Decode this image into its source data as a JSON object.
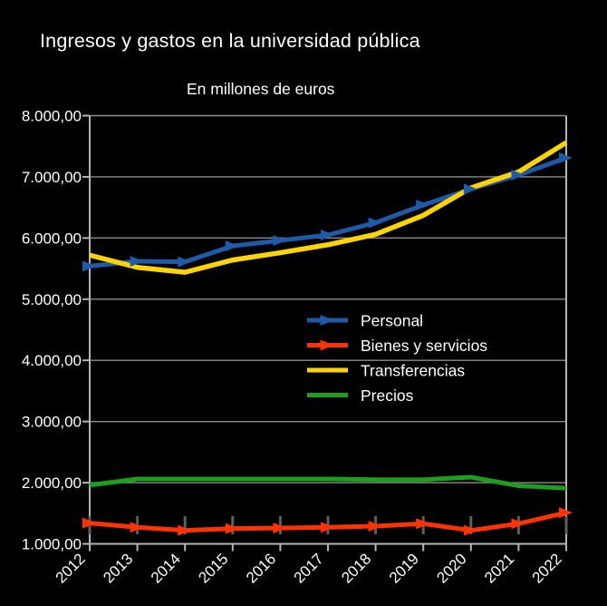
{
  "chart_data": {
    "type": "line",
    "title": "Ingresos y gastos en la universidad pública",
    "subtitle": "En millones de euros",
    "categories": [
      "2012",
      "2013",
      "2014",
      "2015",
      "2016",
      "2017",
      "2018",
      "2019",
      "2020",
      "2021",
      "2022"
    ],
    "series": [
      {
        "name": "Personal",
        "color": "#1e5aa8",
        "marker": "arrow",
        "values": [
          5540,
          5620,
          5610,
          5870,
          5960,
          6050,
          6250,
          6540,
          6800,
          7030,
          7310
        ]
      },
      {
        "name": "Bienes y servicios",
        "color": "#ff3300",
        "marker": "arrow",
        "values": [
          1340,
          1270,
          1220,
          1250,
          1260,
          1270,
          1290,
          1330,
          1220,
          1330,
          1510
        ]
      },
      {
        "name": "Transferencias",
        "color": "#ffd400",
        "marker": "none",
        "values": [
          5720,
          5520,
          5440,
          5640,
          5760,
          5890,
          6060,
          6370,
          6820,
          7080,
          7560
        ]
      },
      {
        "name": "Precios",
        "color": "#1e9e1e",
        "marker": "none",
        "values": [
          1960,
          2060,
          2060,
          2060,
          2060,
          2060,
          2050,
          2050,
          2090,
          1950,
          1910
        ]
      }
    ],
    "ylim": [
      1000,
      8000
    ],
    "ytick_step": 1000,
    "ytick_labels": [
      "1.000,00",
      "2.000,00",
      "3.000,00",
      "4.000,00",
      "5.000,00",
      "6.000,00",
      "7.000,00",
      "8.000,00"
    ],
    "xlabel": "",
    "ylabel": "",
    "grid": true,
    "legend_position": "inside-middle-right",
    "colors": {
      "background": "#000000",
      "text": "#ffffff",
      "gridline": "#8c8c8c",
      "axis": "#b5b5b5",
      "interval_mark": "#5e5e5e"
    }
  }
}
